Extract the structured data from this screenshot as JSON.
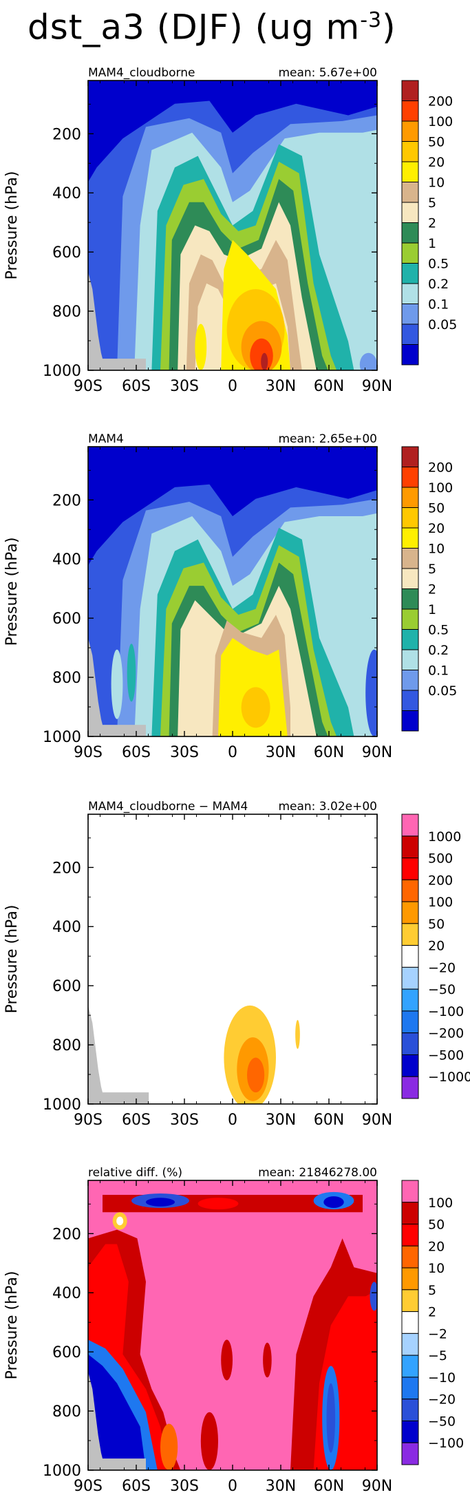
{
  "title": "dst_a3 (DJF) (ug m",
  "title_sup": "-3",
  "title_close": ")",
  "chart_data": [
    {
      "type": "heatmap",
      "left_label": "MAM4_cloudborne",
      "right_label": "mean:  5.67e+00",
      "ylabel": "Pressure  (hPa)",
      "x_ticks": [
        "90S",
        "60S",
        "30S",
        "0",
        "30N",
        "60N",
        "90N"
      ],
      "y_ticks": [
        "200",
        "400",
        "600",
        "800",
        "1000"
      ],
      "ylim": [
        1000,
        20
      ],
      "colorbar_labels": [
        "200",
        "100",
        "50",
        "20",
        "10",
        "5",
        "2",
        "1",
        "0.5",
        "0.2",
        "0.1",
        "0.05"
      ],
      "colors": [
        "#b02020",
        "#ff4000",
        "#ff9a00",
        "#ffc800",
        "#ffef00",
        "#d8b48c",
        "#f7e7c0",
        "#2e8b57",
        "#9acd32",
        "#20b2aa",
        "#b0e0e6",
        "#6f9aeb",
        "#3358e0",
        "#0000cc"
      ]
    },
    {
      "type": "heatmap",
      "left_label": "MAM4",
      "right_label": "mean:  2.65e+00",
      "ylabel": "Pressure  (hPa)",
      "x_ticks": [
        "90S",
        "60S",
        "30S",
        "0",
        "30N",
        "60N",
        "90N"
      ],
      "y_ticks": [
        "200",
        "400",
        "600",
        "800",
        "1000"
      ],
      "ylim": [
        1000,
        20
      ],
      "colorbar_labels": [
        "200",
        "100",
        "50",
        "20",
        "10",
        "5",
        "2",
        "1",
        "0.5",
        "0.2",
        "0.1",
        "0.05"
      ],
      "colors": [
        "#b02020",
        "#ff4000",
        "#ff9a00",
        "#ffc800",
        "#ffef00",
        "#d8b48c",
        "#f7e7c0",
        "#2e8b57",
        "#9acd32",
        "#20b2aa",
        "#b0e0e6",
        "#6f9aeb",
        "#3358e0",
        "#0000cc"
      ]
    },
    {
      "type": "heatmap",
      "left_label": "MAM4_cloudborne  −  MAM4",
      "right_label": "mean:  3.02e+00",
      "ylabel": "Pressure  (hPa)",
      "x_ticks": [
        "90S",
        "60S",
        "30S",
        "0",
        "30N",
        "60N",
        "90N"
      ],
      "y_ticks": [
        "200",
        "400",
        "600",
        "800",
        "1000"
      ],
      "ylim": [
        1000,
        20
      ],
      "colorbar_labels": [
        "1000",
        "500",
        "200",
        "100",
        "50",
        "20",
        "−20",
        "−50",
        "−100",
        "−200",
        "−500",
        "−1000"
      ],
      "colors": [
        "#ff66b3",
        "#cc0000",
        "#ff0000",
        "#ff6600",
        "#ff9900",
        "#ffcc33",
        "#ffffff",
        "#a6d2ff",
        "#33a3ff",
        "#1e78f0",
        "#2a50d8",
        "#0000cc",
        "#8a2be2"
      ]
    },
    {
      "type": "heatmap",
      "left_label": "relative  diff.  (%)",
      "right_label": "mean:  21846278.00",
      "ylabel": "Pressure  (hPa)",
      "x_ticks": [
        "90S",
        "60S",
        "30S",
        "0",
        "30N",
        "60N",
        "90N"
      ],
      "y_ticks": [
        "200",
        "400",
        "600",
        "800",
        "1000"
      ],
      "ylim": [
        1000,
        20
      ],
      "colorbar_labels": [
        "100",
        "50",
        "20",
        "10",
        "5",
        "2",
        "−2",
        "−5",
        "−10",
        "−20",
        "−50",
        "−100"
      ],
      "colors": [
        "#ff66b3",
        "#cc0000",
        "#ff0000",
        "#ff6600",
        "#ff9900",
        "#ffcc33",
        "#ffffff",
        "#a6d2ff",
        "#33a3ff",
        "#1e78f0",
        "#2a50d8",
        "#0000cc",
        "#8a2be2"
      ]
    }
  ]
}
